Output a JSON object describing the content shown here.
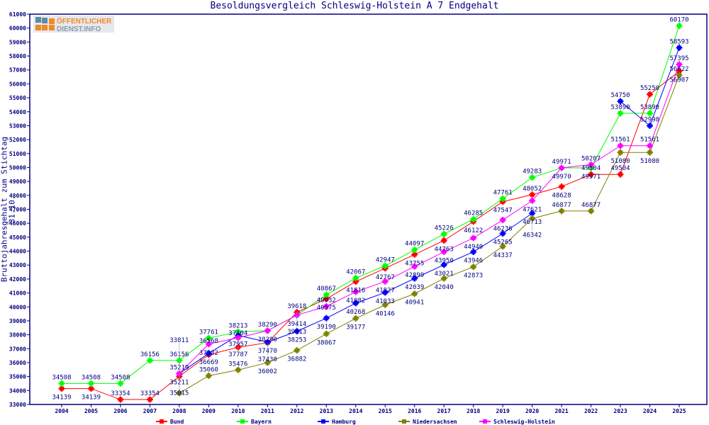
{
  "chart_data": {
    "type": "line",
    "title": "Besoldungsvergleich Schleswig-Holstein A 7 Endgehalt",
    "xlabel": "",
    "ylabel": "Bruttojahresgehalt zum Stichtag 31.10.",
    "ylim": [
      33000,
      61000
    ],
    "ytick_step": 1000,
    "grid": false,
    "legend": "bottom",
    "x": [
      2004,
      2005,
      2006,
      2007,
      2008,
      2009,
      2010,
      2011,
      2012,
      2013,
      2014,
      2015,
      2016,
      2017,
      2018,
      2019,
      2020,
      2021,
      2022,
      2023,
      2024,
      2025
    ],
    "series": [
      {
        "name": "Bund",
        "color": "#ff0000",
        "values": [
          34139,
          34139,
          33354,
          33354,
          35015,
          36568,
          37104,
          37430,
          39618,
          40575,
          41816,
          42767,
          43755,
          44763,
          46122,
          47547,
          48052,
          48628,
          49504,
          49504,
          55250,
          56907
        ]
      },
      {
        "name": "Bayern",
        "color": "#00ff00",
        "values": [
          34508,
          34508,
          34508,
          36156,
          36156,
          37761,
          38213,
          38290,
          39413,
          40867,
          42067,
          42947,
          44097,
          45226,
          46285,
          47761,
          49283,
          49970,
          49971,
          53890,
          53890,
          60170
        ]
      },
      {
        "name": "Hamburg",
        "color": "#0000ff",
        "values": [
          null,
          null,
          null,
          null,
          35211,
          36669,
          37957,
          37470,
          38253,
          39190,
          40268,
          41033,
          42039,
          43021,
          43946,
          45265,
          46713,
          null,
          null,
          54750,
          52998,
          58593
        ]
      },
      {
        "name": "Niedersachsen",
        "color": "#808000",
        "values": [
          null,
          null,
          null,
          null,
          33811,
          35060,
          35476,
          36002,
          36882,
          38067,
          39177,
          40146,
          40941,
          42040,
          42873,
          44337,
          46342,
          46877,
          46877,
          51080,
          51080,
          56622
        ]
      },
      {
        "name": "Schleswig-Holstein",
        "color": "#ff00ff",
        "values": [
          null,
          null,
          null,
          null,
          35219,
          37332,
          37787,
          38290,
          39414,
          40032,
          41082,
          41827,
          42899,
          43950,
          44940,
          46236,
          47621,
          49971,
          50207,
          51561,
          51561,
          57395
        ]
      }
    ]
  },
  "logo": {
    "text_line1": "ÖFFENTLICHER",
    "text_line2": "DIENST.INFO"
  },
  "colors": {
    "axis": "#000080",
    "text": "#000080"
  }
}
